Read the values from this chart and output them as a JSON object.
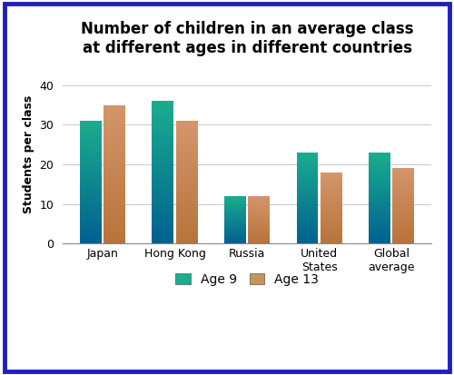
{
  "title": "Number of children in an average class\nat different ages in different countries",
  "ylabel": "Students per class",
  "categories": [
    "Japan",
    "Hong Kong",
    "Russia",
    "United\nStates",
    "Global\naverage"
  ],
  "age9_values": [
    31,
    36,
    12,
    23,
    23
  ],
  "age13_values": [
    35,
    31,
    12,
    18,
    19
  ],
  "age9_color_top": "#1aad8e",
  "age9_color_bottom": "#006090",
  "age13_color_top": "#d4956b",
  "age13_color_bottom": "#b8733a",
  "ylim": [
    0,
    45
  ],
  "yticks": [
    0,
    10,
    20,
    30,
    40
  ],
  "legend_age9": "Age 9",
  "legend_age13": "Age 13",
  "border_color": "#2020bb",
  "title_fontsize": 12,
  "axis_fontsize": 9,
  "tick_fontsize": 9
}
